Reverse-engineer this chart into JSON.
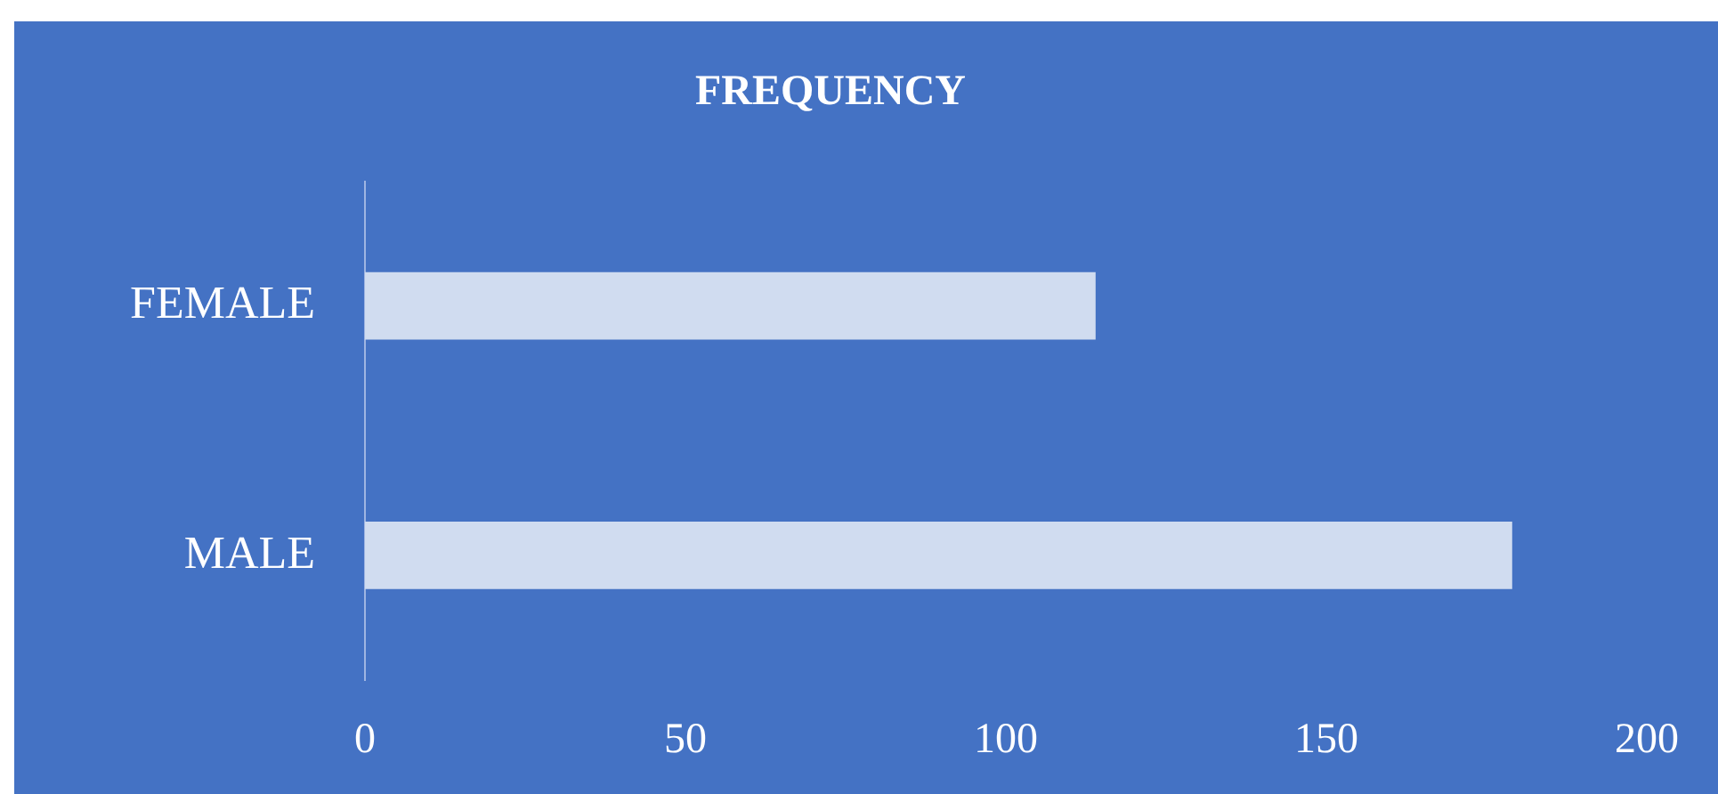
{
  "chart_data": {
    "type": "bar",
    "orientation": "horizontal",
    "title": "FREQUENCY",
    "categories": [
      "FEMALE",
      "MALE"
    ],
    "values": [
      114,
      179
    ],
    "color": "#d0dcf0",
    "xlim": [
      0,
      200
    ],
    "xticks": [
      0,
      50,
      100,
      150,
      200
    ]
  }
}
